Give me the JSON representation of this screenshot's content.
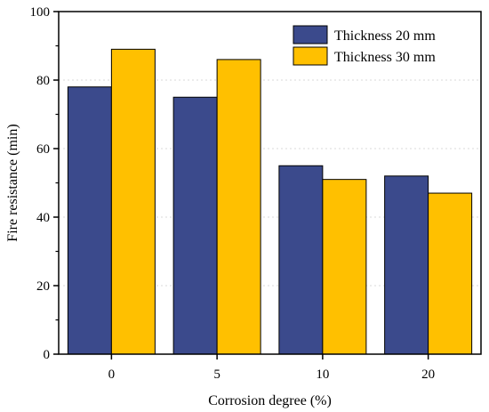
{
  "chart_data": {
    "type": "bar",
    "categories": [
      "0",
      "5",
      "10",
      "20"
    ],
    "series": [
      {
        "name": "Thickness 20 mm",
        "values": [
          78,
          75,
          55,
          52
        ]
      },
      {
        "name": "Thickness 30 mm",
        "values": [
          89,
          86,
          51,
          47
        ]
      }
    ],
    "title": "",
    "xlabel": "Corrosion degree (%)",
    "ylabel": "Fire resistance (min)",
    "ylim": [
      0,
      100
    ],
    "yticks": [
      0,
      20,
      40,
      60,
      80,
      100
    ],
    "grid": true,
    "legend_position": "top-right",
    "colors": [
      "#3b4a8c",
      "#ffc000"
    ]
  }
}
